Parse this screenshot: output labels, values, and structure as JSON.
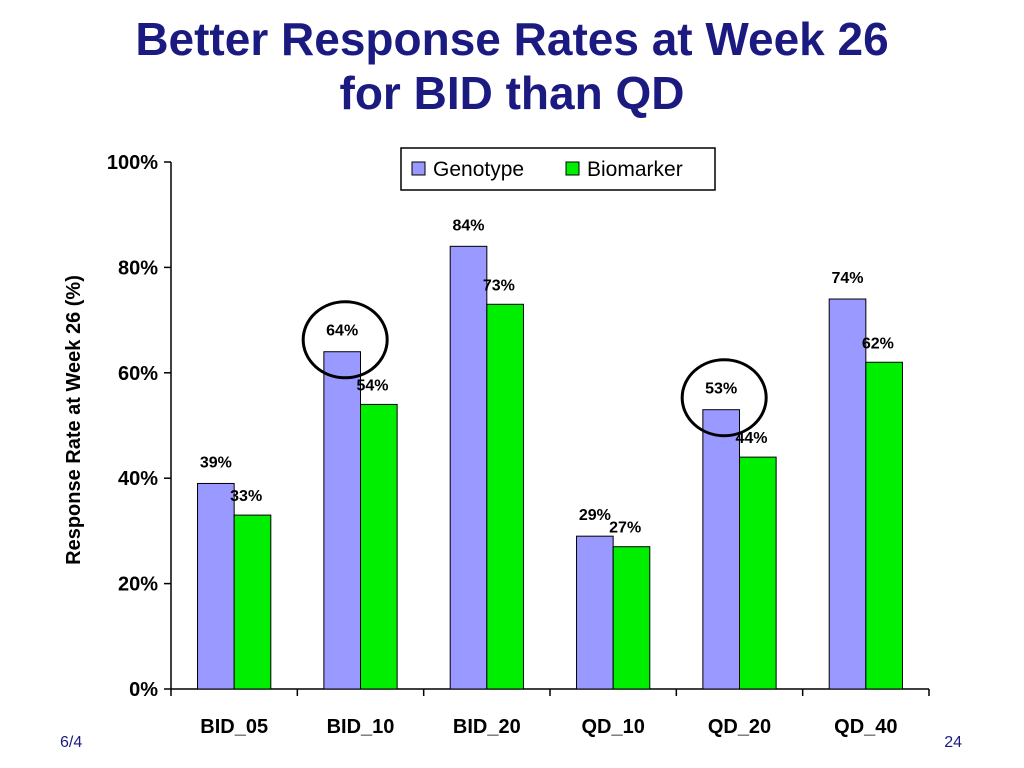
{
  "slide": {
    "title_line1": "Better Response Rates at Week 26",
    "title_line2": "for BID than QD",
    "footer_date": "6/4",
    "page_number": "24"
  },
  "colors": {
    "title": "#1a1a80",
    "genotype": "#9999ff",
    "biomarker": "#00ee00",
    "highlight_circle": "#000000"
  },
  "chart_data": {
    "type": "bar",
    "title": "",
    "xlabel": "",
    "ylabel": "Response Rate at Week 26 (%)",
    "ylim": [
      0,
      100
    ],
    "yticks": [
      "0%",
      "20%",
      "40%",
      "60%",
      "80%",
      "100%"
    ],
    "y_tick_values": [
      0,
      20,
      40,
      60,
      80,
      100
    ],
    "categories": [
      "BID_05",
      "BID_10",
      "BID_20",
      "QD_10",
      "QD_20",
      "QD_40"
    ],
    "series": [
      {
        "name": "Genotype",
        "values": [
          39,
          64,
          84,
          29,
          53,
          74
        ],
        "labels": [
          "39%",
          "64%",
          "84%",
          "29%",
          "53%",
          "74%"
        ]
      },
      {
        "name": "Biomarker",
        "values": [
          33,
          54,
          73,
          27,
          44,
          62
        ],
        "labels": [
          "33%",
          "54%",
          "73%",
          "27%",
          "44%",
          "62%"
        ]
      }
    ],
    "legend_position": "top-right",
    "grid": false,
    "highlighted_categories": [
      "BID_10",
      "QD_20"
    ]
  }
}
